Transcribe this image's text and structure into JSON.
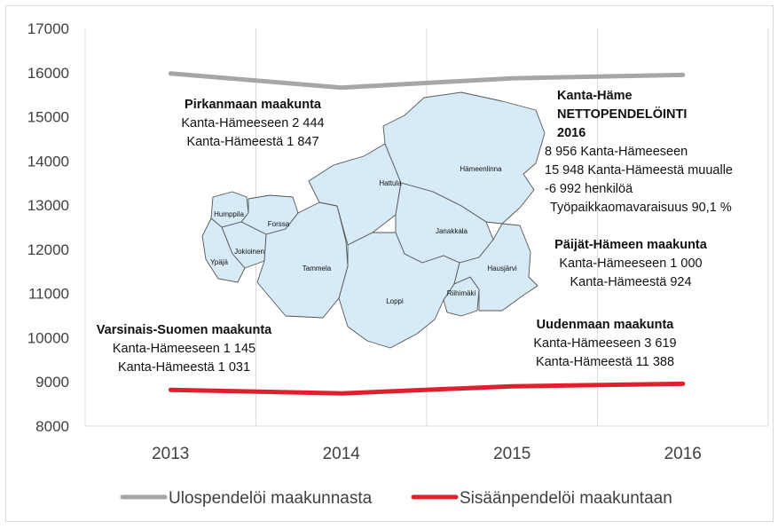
{
  "chart_data": {
    "type": "line",
    "categories": [
      "2013",
      "2014",
      "2015",
      "2016"
    ],
    "series": [
      {
        "name": "Ulospendelöi maakunnasta",
        "values": [
          15980,
          15660,
          15870,
          15948
        ],
        "color": "#a6a6a6"
      },
      {
        "name": "Sisäänpendelöi maakuntaan",
        "values": [
          8820,
          8740,
          8900,
          8956
        ],
        "color": "#e0202e"
      }
    ],
    "ylim": [
      8000,
      17000
    ],
    "yticks": [
      "8000",
      "9000",
      "10000",
      "11000",
      "12000",
      "13000",
      "14000",
      "15000",
      "16000",
      "17000"
    ],
    "grid": "vertical",
    "legend": "bottom",
    "title": "",
    "xlabel": "",
    "ylabel": ""
  },
  "annotations": {
    "pirkanmaa": {
      "title": "Pirkanmaan maakunta",
      "line1": "Kanta-Hämeeseen 2 444",
      "line2": "Kanta-Hämeestä 1 847"
    },
    "kantahame": {
      "title1": "Kanta-Häme",
      "title2": "NETTOPENDELÖINTI",
      "title3": "2016",
      "line1": "8 956 Kanta-Hämeeseen",
      "line2": "15 948 Kanta-Hämeestä muualle",
      "line3": "-6 992 henkilöä",
      "line4": "Työpaikkaomavaraisuus 90,1 %"
    },
    "paijat": {
      "title": "Päijät-Hämeen maakunta",
      "line1": "Kanta-Hämeeseen 1 000",
      "line2": "Kanta-Hämeestä 924"
    },
    "varsinais": {
      "title": "Varsinais-Suomen maakunta",
      "line1": "Kanta-Hämeeseen 1 145",
      "line2": "Kanta-Hämeestä 1 031"
    },
    "uusimaa": {
      "title": "Uudenmaan maakunta",
      "line1": "Kanta-Hämeeseen 3 619",
      "line2": "Kanta-Hämeestä 11 388"
    }
  },
  "map": {
    "fill": "#d6ebf7",
    "stroke": "#555555",
    "municipalities": [
      "Humppila",
      "Forssa",
      "Jokioinen",
      "Ypäjä",
      "Tammela",
      "Hattula",
      "Hämeenlinna",
      "Janakkala",
      "Loppi",
      "Riihimäki",
      "Hausjärvi"
    ]
  }
}
